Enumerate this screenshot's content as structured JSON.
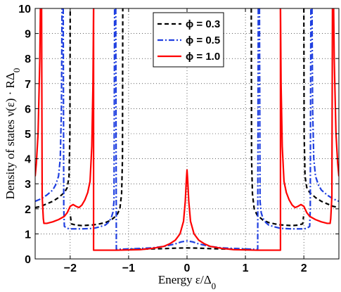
{
  "chart_data": {
    "type": "line",
    "title": "",
    "xlabel": "Energy  ε/Δ",
    "xlabel_sub": "0",
    "ylabel": "Density of states  ν(ε) · RΔ",
    "ylabel_sub": "0",
    "xlim": [
      -2.6,
      2.6
    ],
    "ylim": [
      0,
      10
    ],
    "xticks": [
      -2,
      -1,
      0,
      1,
      2
    ],
    "xtick_labels": [
      "−2",
      "−1",
      "0",
      "1",
      "2"
    ],
    "yticks": [
      0,
      1,
      2,
      3,
      4,
      5,
      6,
      7,
      8,
      9,
      10
    ],
    "ytick_labels": [
      "0",
      "1",
      "2",
      "3",
      "4",
      "5",
      "6",
      "7",
      "8",
      "9",
      "10"
    ],
    "grid": true,
    "legend_position": "top-center",
    "series": [
      {
        "name": "ϕ = 0.3",
        "color": "#000000",
        "style": "dashed",
        "segments": [
          [
            [
              -2.6,
              2.05
            ],
            [
              -2.5,
              2.1
            ],
            [
              -2.4,
              2.2
            ],
            [
              -2.3,
              2.3
            ],
            [
              -2.2,
              2.45
            ],
            [
              -2.1,
              2.65
            ],
            [
              -2.05,
              2.85
            ],
            [
              -2.02,
              3.3
            ],
            [
              -2.005,
              5.0
            ],
            [
              -2.0,
              10.0
            ]
          ],
          [
            [
              -1.995,
              1.7
            ],
            [
              -1.98,
              1.4
            ],
            [
              -1.9,
              1.35
            ],
            [
              -1.8,
              1.33
            ],
            [
              -1.6,
              1.36
            ],
            [
              -1.5,
              1.4
            ],
            [
              -1.4,
              1.45
            ],
            [
              -1.3,
              1.55
            ],
            [
              -1.2,
              1.75
            ],
            [
              -1.15,
              2.0
            ],
            [
              -1.12,
              2.6
            ],
            [
              -1.105,
              4.0
            ],
            [
              -1.1,
              10.0
            ]
          ],
          [
            [
              -1.1,
              0.38
            ],
            [
              -1.0,
              0.38
            ],
            [
              -0.8,
              0.39
            ],
            [
              -0.6,
              0.4
            ],
            [
              -0.4,
              0.41
            ],
            [
              -0.2,
              0.43
            ],
            [
              0.0,
              0.44
            ],
            [
              0.2,
              0.43
            ],
            [
              0.4,
              0.41
            ],
            [
              0.6,
              0.4
            ],
            [
              0.8,
              0.39
            ],
            [
              1.0,
              0.38
            ],
            [
              1.1,
              0.38
            ]
          ],
          [
            [
              1.1,
              10.0
            ],
            [
              1.105,
              4.0
            ],
            [
              1.12,
              2.6
            ],
            [
              1.15,
              2.0
            ],
            [
              1.2,
              1.75
            ],
            [
              1.3,
              1.55
            ],
            [
              1.4,
              1.45
            ],
            [
              1.5,
              1.4
            ],
            [
              1.6,
              1.36
            ],
            [
              1.8,
              1.33
            ],
            [
              1.9,
              1.35
            ],
            [
              1.98,
              1.4
            ],
            [
              1.995,
              1.7
            ]
          ],
          [
            [
              2.0,
              10.0
            ],
            [
              2.005,
              5.0
            ],
            [
              2.02,
              3.3
            ],
            [
              2.05,
              2.85
            ],
            [
              2.1,
              2.65
            ],
            [
              2.2,
              2.45
            ],
            [
              2.3,
              2.3
            ],
            [
              2.4,
              2.2
            ],
            [
              2.5,
              2.1
            ],
            [
              2.6,
              2.05
            ]
          ]
        ]
      },
      {
        "name": "ϕ = 0.5",
        "color": "#1f3fe0",
        "style": "dashdot",
        "segments": [
          [
            [
              -2.6,
              2.3
            ],
            [
              -2.5,
              2.4
            ],
            [
              -2.4,
              2.55
            ],
            [
              -2.3,
              2.75
            ],
            [
              -2.25,
              2.95
            ],
            [
              -2.2,
              3.3
            ],
            [
              -2.17,
              4.0
            ],
            [
              -2.15,
              6.0
            ],
            [
              -2.14,
              10.0
            ]
          ],
          [
            [
              -2.12,
              10.0
            ],
            [
              -2.11,
              2.0
            ],
            [
              -2.1,
              1.3
            ],
            [
              -2.05,
              1.22
            ],
            [
              -2.0,
              1.2
            ],
            [
              -1.8,
              1.2
            ],
            [
              -1.6,
              1.22
            ],
            [
              -1.5,
              1.28
            ],
            [
              -1.4,
              1.35
            ],
            [
              -1.35,
              1.45
            ],
            [
              -1.3,
              1.62
            ],
            [
              -1.27,
              1.85
            ],
            [
              -1.25,
              2.3
            ],
            [
              -1.24,
              10.0
            ]
          ],
          [
            [
              -1.22,
              10.0
            ],
            [
              -1.21,
              0.38
            ],
            [
              -1.0,
              0.4
            ],
            [
              -0.8,
              0.42
            ],
            [
              -0.6,
              0.44
            ],
            [
              -0.4,
              0.5
            ],
            [
              -0.2,
              0.6
            ],
            [
              -0.1,
              0.68
            ],
            [
              0.0,
              0.72
            ],
            [
              0.1,
              0.68
            ],
            [
              0.2,
              0.6
            ],
            [
              0.4,
              0.5
            ],
            [
              0.6,
              0.44
            ],
            [
              0.8,
              0.42
            ],
            [
              1.0,
              0.4
            ],
            [
              1.21,
              0.38
            ],
            [
              1.22,
              10.0
            ]
          ],
          [
            [
              1.24,
              10.0
            ],
            [
              1.25,
              2.3
            ],
            [
              1.27,
              1.85
            ],
            [
              1.3,
              1.62
            ],
            [
              1.35,
              1.45
            ],
            [
              1.4,
              1.35
            ],
            [
              1.5,
              1.28
            ],
            [
              1.6,
              1.22
            ],
            [
              1.8,
              1.2
            ],
            [
              2.0,
              1.2
            ],
            [
              2.05,
              1.22
            ],
            [
              2.1,
              1.3
            ],
            [
              2.11,
              2.0
            ],
            [
              2.12,
              10.0
            ]
          ],
          [
            [
              2.14,
              10.0
            ],
            [
              2.15,
              6.0
            ],
            [
              2.17,
              4.0
            ],
            [
              2.2,
              3.3
            ],
            [
              2.25,
              2.95
            ],
            [
              2.3,
              2.75
            ],
            [
              2.4,
              2.55
            ],
            [
              2.5,
              2.4
            ],
            [
              2.6,
              2.3
            ]
          ]
        ]
      },
      {
        "name": "ϕ = 1.0",
        "color": "#ff0000",
        "style": "solid",
        "segments": [
          [
            [
              -2.6,
              3.3
            ],
            [
              -2.58,
              3.8
            ],
            [
              -2.55,
              5.0
            ],
            [
              -2.52,
              8.0
            ],
            [
              -2.51,
              10.0
            ]
          ],
          [
            [
              -2.49,
              10.0
            ],
            [
              -2.48,
              2.5
            ],
            [
              -2.46,
              1.6
            ],
            [
              -2.45,
              1.42
            ],
            [
              -2.4,
              1.42
            ],
            [
              -2.3,
              1.48
            ],
            [
              -2.2,
              1.57
            ],
            [
              -2.1,
              1.7
            ],
            [
              -2.05,
              1.85
            ],
            [
              -2.0,
              2.1
            ],
            [
              -1.95,
              2.17
            ],
            [
              -1.9,
              2.1
            ],
            [
              -1.85,
              2.05
            ],
            [
              -1.8,
              2.15
            ],
            [
              -1.75,
              2.35
            ],
            [
              -1.7,
              2.65
            ],
            [
              -1.66,
              3.1
            ],
            [
              -1.63,
              4.5
            ],
            [
              -1.61,
              7.0
            ],
            [
              -1.6,
              10.0
            ]
          ],
          [
            [
              -1.6,
              10.0
            ],
            [
              -1.6,
              0.35
            ],
            [
              -1.2,
              0.35
            ],
            [
              -0.8,
              0.37
            ],
            [
              -0.6,
              0.42
            ],
            [
              -0.4,
              0.5
            ],
            [
              -0.3,
              0.6
            ],
            [
              -0.2,
              0.75
            ],
            [
              -0.12,
              1.0
            ],
            [
              -0.06,
              1.5
            ],
            [
              -0.03,
              2.3
            ],
            [
              -0.01,
              3.2
            ],
            [
              0.0,
              3.55
            ],
            [
              0.01,
              3.2
            ],
            [
              0.03,
              2.3
            ],
            [
              0.06,
              1.5
            ],
            [
              0.12,
              1.0
            ],
            [
              0.2,
              0.75
            ],
            [
              0.3,
              0.6
            ],
            [
              0.4,
              0.5
            ],
            [
              0.6,
              0.42
            ],
            [
              0.8,
              0.37
            ],
            [
              1.2,
              0.35
            ],
            [
              1.6,
              0.35
            ],
            [
              1.6,
              10.0
            ]
          ],
          [
            [
              1.6,
              10.0
            ],
            [
              1.61,
              7.0
            ],
            [
              1.63,
              4.5
            ],
            [
              1.66,
              3.1
            ],
            [
              1.7,
              2.65
            ],
            [
              1.75,
              2.35
            ],
            [
              1.8,
              2.15
            ],
            [
              1.85,
              2.05
            ],
            [
              1.9,
              2.1
            ],
            [
              1.95,
              2.17
            ],
            [
              2.0,
              2.1
            ],
            [
              2.05,
              1.85
            ],
            [
              2.1,
              1.7
            ],
            [
              2.2,
              1.57
            ],
            [
              2.3,
              1.48
            ],
            [
              2.4,
              1.42
            ],
            [
              2.45,
              1.42
            ],
            [
              2.46,
              1.6
            ],
            [
              2.48,
              2.5
            ],
            [
              2.49,
              10.0
            ]
          ],
          [
            [
              2.51,
              10.0
            ],
            [
              2.52,
              8.0
            ],
            [
              2.55,
              5.0
            ],
            [
              2.58,
              3.8
            ],
            [
              2.6,
              3.3
            ]
          ]
        ]
      }
    ]
  }
}
